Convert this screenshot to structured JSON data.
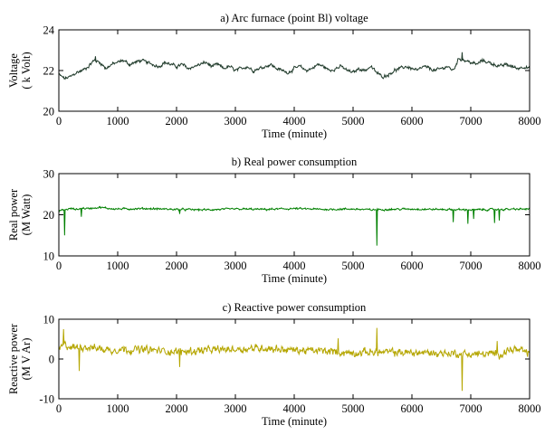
{
  "chart_data": [
    {
      "type": "line",
      "title": "a) Arc furnace (point Bl) voltage",
      "xlabel": "Time (minute)",
      "ylabel_lines": [
        "Voltage",
        "( k Volt)"
      ],
      "xlim": [
        0,
        8000
      ],
      "ylim": [
        20,
        24
      ],
      "xticks": [
        0,
        1000,
        2000,
        3000,
        4000,
        5000,
        6000,
        7000,
        8000
      ],
      "yticks": [
        20,
        22,
        24
      ],
      "color": "#1f3a2a",
      "series": [
        {
          "x": [
            0,
            100,
            200,
            300,
            400,
            500,
            600,
            700,
            800,
            900,
            1000,
            1100,
            1200,
            1300,
            1400,
            1500,
            1600,
            1700,
            1800,
            1900,
            2000,
            2100,
            2200,
            2300,
            2400,
            2500,
            2600,
            2700,
            2800,
            2900,
            3000,
            3100,
            3200,
            3300,
            3400,
            3500,
            3600,
            3700,
            3800,
            3900,
            4000,
            4100,
            4200,
            4300,
            4400,
            4500,
            4600,
            4700,
            4800,
            4900,
            5000,
            5100,
            5200,
            5300,
            5400,
            5500,
            5600,
            5700,
            5800,
            5900,
            6000,
            6100,
            6200,
            6300,
            6400,
            6500,
            6600,
            6700,
            6800,
            6900,
            7000,
            7100,
            7200,
            7300,
            7400,
            7500,
            7600,
            7700,
            7800,
            7900,
            8000
          ],
          "y": [
            21.8,
            21.6,
            21.7,
            21.9,
            22.0,
            22.2,
            22.5,
            22.4,
            22.1,
            22.3,
            22.4,
            22.5,
            22.3,
            22.4,
            22.5,
            22.4,
            22.3,
            22.2,
            22.4,
            22.3,
            22.2,
            22.3,
            22.1,
            22.2,
            22.3,
            22.4,
            22.2,
            22.3,
            22.1,
            22.2,
            22.0,
            22.1,
            22.2,
            22.0,
            22.1,
            22.2,
            22.3,
            22.1,
            22.0,
            21.9,
            22.1,
            22.2,
            22.0,
            22.1,
            22.3,
            22.2,
            22.0,
            22.1,
            22.2,
            22.0,
            21.9,
            22.1,
            22.0,
            22.2,
            21.9,
            21.7,
            21.8,
            22.0,
            22.1,
            22.2,
            22.1,
            22.0,
            22.2,
            22.1,
            22.0,
            22.1,
            22.2,
            22.0,
            22.6,
            22.5,
            22.4,
            22.3,
            22.5,
            22.4,
            22.3,
            22.2,
            22.3,
            22.2,
            22.1,
            22.2,
            22.1
          ]
        }
      ],
      "noise": 0.12,
      "spikes": [
        {
          "x": 6850,
          "y": 22.9
        },
        {
          "x": 620,
          "y": 22.7
        }
      ]
    },
    {
      "type": "line",
      "title": "b) Real power consumption",
      "xlabel": "Time (minute)",
      "ylabel_lines": [
        "Real power",
        "(M Watt)"
      ],
      "xlim": [
        0,
        8000
      ],
      "ylim": [
        10,
        30
      ],
      "xticks": [
        0,
        1000,
        2000,
        3000,
        4000,
        5000,
        6000,
        7000,
        8000
      ],
      "yticks": [
        10,
        20,
        30
      ],
      "color": "#008000",
      "series": [
        {
          "x": [
            0,
            100,
            200,
            300,
            400,
            500,
            600,
            700,
            800,
            900,
            1000,
            1500,
            2000,
            2500,
            3000,
            3500,
            4000,
            4500,
            5000,
            5300,
            5500,
            6000,
            6500,
            7000,
            7500,
            8000
          ],
          "y": [
            21.0,
            21.2,
            21.5,
            21.3,
            21.6,
            21.5,
            21.7,
            21.8,
            21.6,
            21.5,
            21.4,
            21.5,
            21.3,
            21.2,
            21.4,
            21.3,
            21.5,
            21.3,
            21.4,
            21.2,
            21.3,
            21.4,
            21.3,
            21.2,
            21.3,
            21.4
          ]
        }
      ],
      "noise": 0.35,
      "spikes": [
        {
          "x": 100,
          "y": 15.0
        },
        {
          "x": 380,
          "y": 19.5
        },
        {
          "x": 2050,
          "y": 20.2
        },
        {
          "x": 5400,
          "y": 12.5
        },
        {
          "x": 6700,
          "y": 18.2
        },
        {
          "x": 6950,
          "y": 17.8
        },
        {
          "x": 7050,
          "y": 19.0
        },
        {
          "x": 7400,
          "y": 18.0
        },
        {
          "x": 7480,
          "y": 18.6
        }
      ]
    },
    {
      "type": "line",
      "title": "c) Reactive power consumption",
      "xlabel": "Time (minute)",
      "ylabel_lines": [
        "Reactive power",
        "(M V Ar)"
      ],
      "xlim": [
        0,
        8000
      ],
      "ylim": [
        -10,
        10
      ],
      "xticks": [
        0,
        1000,
        2000,
        3000,
        4000,
        5000,
        6000,
        7000,
        8000
      ],
      "yticks": [
        -10,
        0,
        10
      ],
      "color": "#b5a600",
      "series": [
        {
          "x": [
            0,
            100,
            200,
            300,
            400,
            500,
            600,
            700,
            800,
            900,
            1000,
            1500,
            2000,
            2500,
            3000,
            3500,
            4000,
            4500,
            5000,
            5300,
            5500,
            6000,
            6500,
            7000,
            7500,
            7700,
            8000
          ],
          "y": [
            2.5,
            3.5,
            3.0,
            2.8,
            3.2,
            3.0,
            2.8,
            2.6,
            2.4,
            2.2,
            2.5,
            2.3,
            1.8,
            2.2,
            2.5,
            2.8,
            2.2,
            2.0,
            1.5,
            1.8,
            1.7,
            1.6,
            1.5,
            1.2,
            1.3,
            2.5,
            1.5
          ]
        }
      ],
      "noise": 1.4,
      "spikes": [
        {
          "x": 80,
          "y": 7.5
        },
        {
          "x": 5400,
          "y": 7.8
        },
        {
          "x": 6850,
          "y": -8.0
        },
        {
          "x": 350,
          "y": -3.0
        },
        {
          "x": 2050,
          "y": -2.0
        },
        {
          "x": 4750,
          "y": 5.2
        },
        {
          "x": 7450,
          "y": 4.5
        }
      ]
    }
  ]
}
